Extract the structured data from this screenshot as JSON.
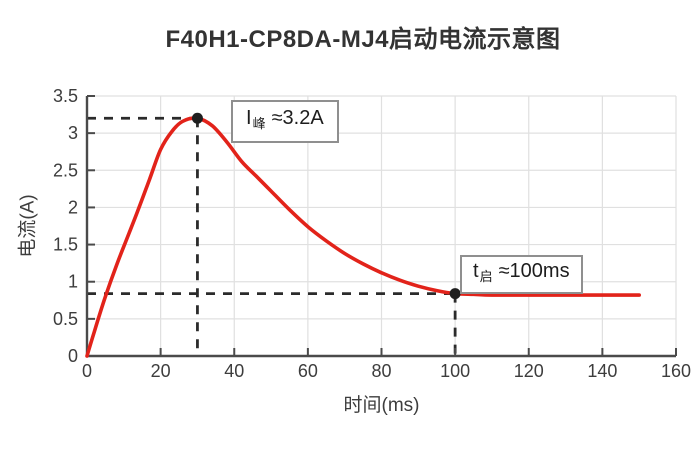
{
  "chart_data": {
    "type": "line",
    "title": "F40H1-CP8DA-MJ4启动电流示意图",
    "xlabel": "时间(ms)",
    "ylabel": "电流(A)",
    "xlim": [
      0,
      160
    ],
    "ylim": [
      0,
      3.5
    ],
    "xticks": [
      0,
      20,
      40,
      60,
      80,
      100,
      120,
      140,
      160
    ],
    "yticks": [
      0,
      0.5,
      1,
      1.5,
      2,
      2.5,
      3,
      3.5
    ],
    "grid": true,
    "legend": false,
    "series": [
      {
        "name": "启动电流",
        "color": "#e2231a",
        "x": [
          0,
          2,
          5,
          8,
          11,
          14,
          17,
          20,
          23,
          26,
          30,
          34,
          38,
          42,
          46,
          50,
          55,
          60,
          65,
          70,
          75,
          80,
          85,
          90,
          95,
          100,
          105,
          110,
          120,
          130,
          140,
          150
        ],
        "y": [
          0,
          0.33,
          0.8,
          1.22,
          1.6,
          1.98,
          2.38,
          2.78,
          3.02,
          3.16,
          3.2,
          3.1,
          2.88,
          2.62,
          2.42,
          2.22,
          1.97,
          1.74,
          1.55,
          1.38,
          1.24,
          1.12,
          1.02,
          0.94,
          0.88,
          0.84,
          0.83,
          0.82,
          0.82,
          0.82,
          0.82,
          0.82
        ]
      }
    ],
    "key_points": [
      {
        "x": 30,
        "y": 3.2,
        "label": "I峰≈3.2A"
      },
      {
        "x": 100,
        "y": 0.84,
        "label": "t启≈100ms"
      }
    ]
  },
  "annotations": {
    "peak": {
      "main": "I",
      "sub": "峰",
      "rest": "≈3.2A"
    },
    "settle": {
      "main": "t",
      "sub": "启",
      "rest": "≈100ms"
    }
  },
  "colors": {
    "curve": "#e2231a",
    "guide": "#2b2b2b",
    "grid": "#e0e0e0",
    "axis": "#4a4a4a",
    "marker": "#1f1f1f",
    "annotation_border": "#8f8f8f",
    "tick_text": "#3d3d3d",
    "title_text": "#333333"
  }
}
